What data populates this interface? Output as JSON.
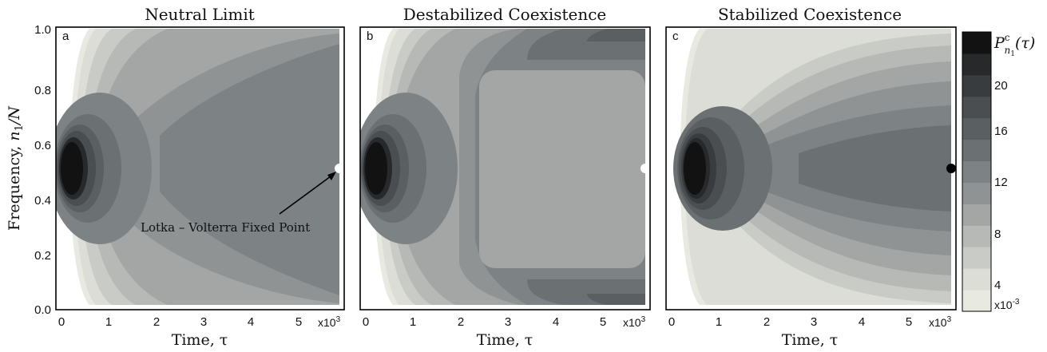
{
  "shared": {
    "xlabel": "Time, τ",
    "ylabel_prefix": "Frequency, ",
    "ylabel_italic": "n",
    "ylabel_sub": "1",
    "ylabel_suffix": "/N",
    "x_ticks": [
      "0",
      "1",
      "2",
      "3",
      "4",
      "5"
    ],
    "x_multiplier": "x10",
    "x_multiplier_exp": "3",
    "y_ticks": [
      "0.0",
      "0.2",
      "0.4",
      "0.6",
      "0.8",
      "1.0"
    ]
  },
  "colorbar": {
    "label_main": "P",
    "label_sup": "c",
    "label_sub": "n",
    "label_sub_sub": "1",
    "label_arg": "(τ)",
    "ticks": [
      "4",
      "8",
      "12",
      "16",
      "20"
    ],
    "multiplier": "x10",
    "multiplier_exp": "-3",
    "colors": [
      "#e8e9e1",
      "#dcddd6",
      "#c9cbc6",
      "#b7b9b6",
      "#a3a6a4",
      "#8f9394",
      "#7d8284",
      "#6b7073",
      "#5a5f62",
      "#4a4e51",
      "#393c3f",
      "#27292b",
      "#121212"
    ]
  },
  "annotation": {
    "text": "Lotka – Volterra Fixed Point"
  },
  "chart_data": [
    {
      "type": "heatmap",
      "panel": "a",
      "title": "Neutral Limit",
      "xlabel": "Time, τ",
      "ylabel": "Frequency, n1/N",
      "xlim": [
        0,
        5.7
      ],
      "ylim": [
        0,
        1
      ],
      "fixed_point": {
        "x": 5.7,
        "y": 0.5,
        "color": "#ffffff"
      },
      "colorbar_ticks": [
        4,
        8,
        12,
        16,
        20
      ]
    },
    {
      "type": "heatmap",
      "panel": "b",
      "title": "Destabilized Coexistence",
      "xlabel": "Time, τ",
      "xlim": [
        0,
        5.7
      ],
      "ylim": [
        0,
        1
      ],
      "fixed_point": {
        "x": 5.7,
        "y": 0.5,
        "color": "#ffffff"
      }
    },
    {
      "type": "heatmap",
      "panel": "c",
      "title": "Stabilized Coexistence",
      "xlabel": "Time, τ",
      "xlim": [
        0,
        5.7
      ],
      "ylim": [
        0,
        1
      ],
      "fixed_point": {
        "x": 5.7,
        "y": 0.5,
        "color": "#000000"
      }
    }
  ]
}
